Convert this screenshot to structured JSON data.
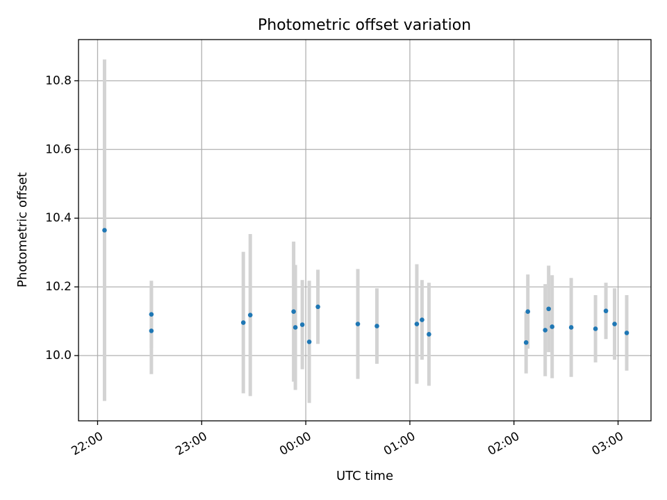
{
  "chart_data": {
    "type": "scatter",
    "title": "Photometric offset variation",
    "xlabel": "UTC time",
    "ylabel": "Photometric offset",
    "x_ticks": [
      "22:00",
      "23:00",
      "00:00",
      "01:00",
      "02:00",
      "03:00"
    ],
    "y_ticks": [
      "10.0",
      "10.2",
      "10.4",
      "10.6",
      "10.8"
    ],
    "xlim": [
      "21:49",
      "03:19"
    ],
    "ylim": [
      9.81,
      10.92
    ],
    "grid": true,
    "colors": {
      "points": "#1f77b4",
      "errorbars": "#d3d3d3"
    },
    "points": [
      {
        "x": "22:04",
        "y": 10.365,
        "low": 9.868,
        "high": 10.862
      },
      {
        "x": "22:31",
        "y": 10.12,
        "low": 10.022,
        "high": 10.218
      },
      {
        "x": "22:31",
        "y": 10.072,
        "low": 9.946,
        "high": 10.198
      },
      {
        "x": "23:24",
        "y": 10.096,
        "low": 9.89,
        "high": 10.302
      },
      {
        "x": "23:28",
        "y": 10.118,
        "low": 9.882,
        "high": 10.354
      },
      {
        "x": "23:53",
        "y": 10.128,
        "low": 9.924,
        "high": 10.332
      },
      {
        "x": "23:54",
        "y": 10.082,
        "low": 9.9,
        "high": 10.264
      },
      {
        "x": "23:58",
        "y": 10.09,
        "low": 9.96,
        "high": 10.22
      },
      {
        "x": "00:02",
        "y": 10.04,
        "low": 9.862,
        "high": 10.218
      },
      {
        "x": "00:07",
        "y": 10.142,
        "low": 10.034,
        "high": 10.25
      },
      {
        "x": "00:30",
        "y": 10.092,
        "low": 9.932,
        "high": 10.252
      },
      {
        "x": "00:41",
        "y": 10.086,
        "low": 9.976,
        "high": 10.196
      },
      {
        "x": "01:04",
        "y": 10.092,
        "low": 9.918,
        "high": 10.266
      },
      {
        "x": "01:07",
        "y": 10.104,
        "low": 9.988,
        "high": 10.22
      },
      {
        "x": "01:11",
        "y": 10.062,
        "low": 9.912,
        "high": 10.212
      },
      {
        "x": "02:07",
        "y": 10.038,
        "low": 9.948,
        "high": 10.128
      },
      {
        "x": "02:08",
        "y": 10.128,
        "low": 10.02,
        "high": 10.236
      },
      {
        "x": "02:18",
        "y": 10.074,
        "low": 9.94,
        "high": 10.208
      },
      {
        "x": "02:20",
        "y": 10.136,
        "low": 10.01,
        "high": 10.262
      },
      {
        "x": "02:22",
        "y": 10.084,
        "low": 9.934,
        "high": 10.234
      },
      {
        "x": "02:33",
        "y": 10.082,
        "low": 9.938,
        "high": 10.226
      },
      {
        "x": "02:47",
        "y": 10.078,
        "low": 9.98,
        "high": 10.176
      },
      {
        "x": "02:53",
        "y": 10.13,
        "low": 10.048,
        "high": 10.212
      },
      {
        "x": "02:58",
        "y": 10.092,
        "low": 9.988,
        "high": 10.196
      },
      {
        "x": "03:05",
        "y": 10.066,
        "low": 9.956,
        "high": 10.176
      }
    ]
  }
}
